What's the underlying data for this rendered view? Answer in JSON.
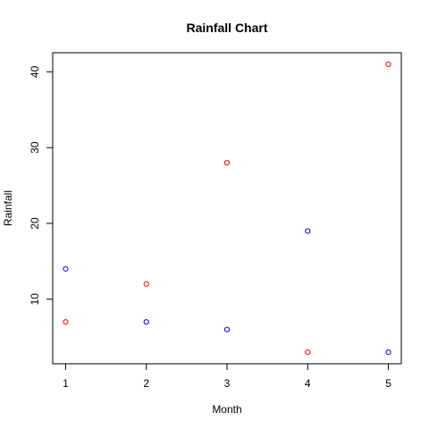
{
  "chart_data": {
    "type": "scatter",
    "title": "Rainfall Chart",
    "xlabel": "Month",
    "ylabel": "Rainfall",
    "xlim": [
      0.84,
      5.16
    ],
    "ylim": [
      1.48,
      42.52
    ],
    "x_ticks": [
      1,
      2,
      3,
      4,
      5
    ],
    "y_ticks": [
      10,
      20,
      30,
      40
    ],
    "grid": false,
    "legend": "none",
    "marker": "open-circle",
    "series": [
      {
        "color": "#ff0000",
        "x": [
          1,
          2,
          3,
          4,
          5
        ],
        "y": [
          7,
          12,
          28,
          3,
          41
        ]
      },
      {
        "color": "#0000ff",
        "x": [
          1,
          2,
          3,
          4,
          5
        ],
        "y": [
          14,
          7,
          6,
          19,
          3
        ]
      }
    ]
  }
}
